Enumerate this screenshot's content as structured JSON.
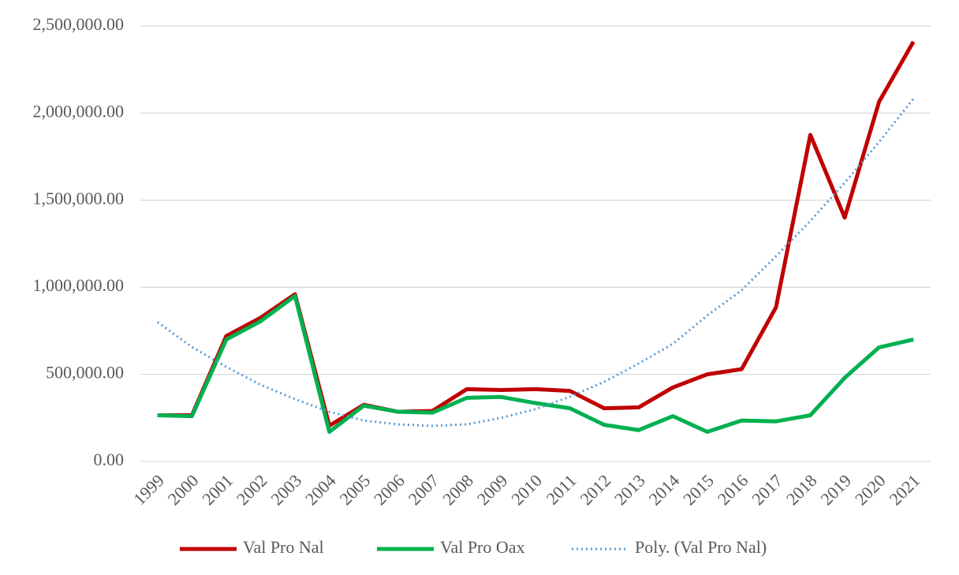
{
  "chart_data": {
    "type": "line",
    "categories": [
      "1999",
      "2000",
      "2001",
      "2002",
      "2003",
      "2004",
      "2005",
      "2006",
      "2007",
      "2008",
      "2009",
      "2010",
      "2011",
      "2012",
      "2013",
      "2014",
      "2015",
      "2016",
      "2017",
      "2018",
      "2019",
      "2020",
      "2021"
    ],
    "series": [
      {
        "name": "Val Pro Nal",
        "color": "#c00000",
        "style": "solid",
        "values": [
          265000,
          265000,
          720000,
          825000,
          960000,
          205000,
          325000,
          285000,
          290000,
          415000,
          410000,
          415000,
          405000,
          305000,
          310000,
          425000,
          500000,
          530000,
          885000,
          1875000,
          1400000,
          2065000,
          2410000
        ]
      },
      {
        "name": "Val Pro Oax",
        "color": "#00b050",
        "style": "solid",
        "values": [
          265000,
          260000,
          700000,
          805000,
          950000,
          170000,
          320000,
          285000,
          280000,
          365000,
          370000,
          335000,
          305000,
          210000,
          180000,
          260000,
          170000,
          235000,
          230000,
          265000,
          480000,
          655000,
          700000
        ]
      },
      {
        "name": "Poly. (Val Pro Nal)",
        "color": "#5b9bd5",
        "style": "dotted",
        "values": [
          800000,
          657000,
          543000,
          440000,
          358000,
          285000,
          235000,
          213000,
          204000,
          213000,
          250000,
          300000,
          371000,
          457000,
          562000,
          675000,
          838000,
          983000,
          1178000,
          1381000,
          1600000,
          1834000,
          2083000
        ]
      }
    ],
    "ylim": [
      0,
      2500000
    ],
    "yticks": [
      {
        "value": 0,
        "label": "0.00"
      },
      {
        "value": 500000,
        "label": "500,000.00"
      },
      {
        "value": 1000000,
        "label": "1,000,000.00"
      },
      {
        "value": 1500000,
        "label": "1,500,000.00"
      },
      {
        "value": 2000000,
        "label": "2,000,000.00"
      },
      {
        "value": 2500000,
        "label": "2,500,000.00"
      }
    ],
    "grid": true,
    "legend": "bottom"
  }
}
